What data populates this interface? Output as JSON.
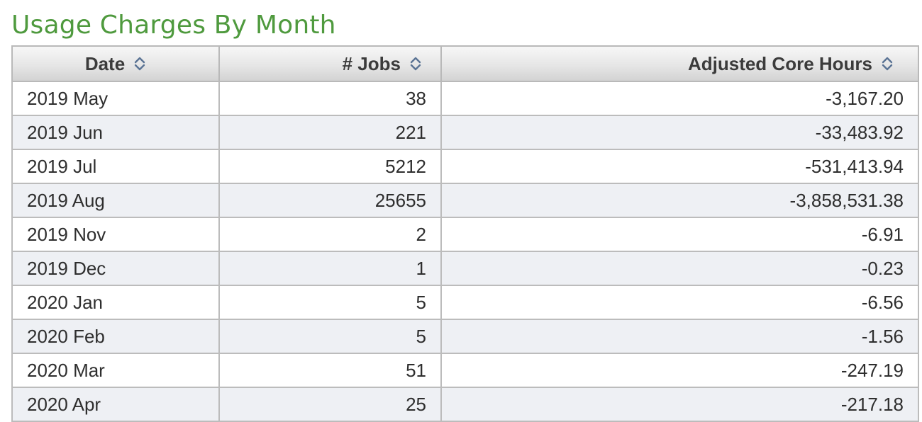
{
  "page": {
    "title": "Usage Charges By Month"
  },
  "colors": {
    "title": "#4f9a3e",
    "header_bg": "#e6e6e6",
    "alt_row_bg": "#eef0f4"
  },
  "table": {
    "columns": [
      {
        "label": "Date",
        "icon": "sort-icon"
      },
      {
        "label": "# Jobs",
        "icon": "sort-icon"
      },
      {
        "label": "Adjusted Core Hours",
        "icon": "sort-icon"
      }
    ],
    "rows": [
      {
        "date": "2019 May",
        "jobs": "38",
        "hours": "-3,167.20"
      },
      {
        "date": "2019 Jun",
        "jobs": "221",
        "hours": "-33,483.92"
      },
      {
        "date": "2019 Jul",
        "jobs": "5212",
        "hours": "-531,413.94"
      },
      {
        "date": "2019 Aug",
        "jobs": "25655",
        "hours": "-3,858,531.38"
      },
      {
        "date": "2019 Nov",
        "jobs": "2",
        "hours": "-6.91"
      },
      {
        "date": "2019 Dec",
        "jobs": "1",
        "hours": "-0.23"
      },
      {
        "date": "2020 Jan",
        "jobs": "5",
        "hours": "-6.56"
      },
      {
        "date": "2020 Feb",
        "jobs": "5",
        "hours": "-1.56"
      },
      {
        "date": "2020 Mar",
        "jobs": "51",
        "hours": "-247.19"
      },
      {
        "date": "2020 Apr",
        "jobs": "25",
        "hours": "-217.18"
      }
    ]
  }
}
